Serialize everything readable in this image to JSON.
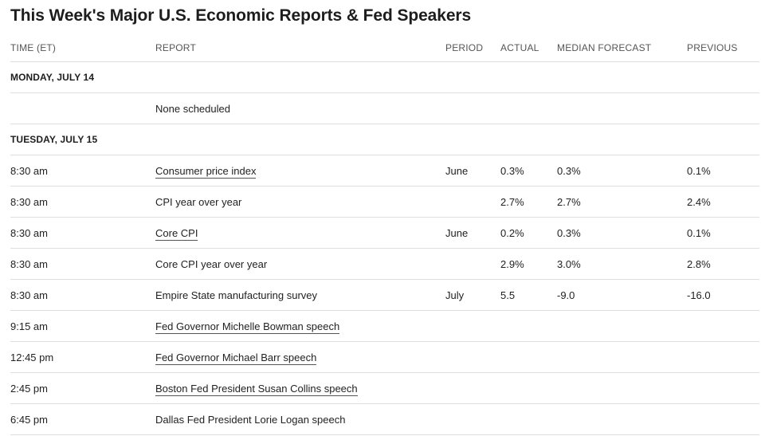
{
  "title": "This Week's Major U.S. Economic Reports & Fed Speakers",
  "columns": {
    "time": "TIME (ET)",
    "report": "REPORT",
    "period": "PERIOD",
    "actual": "ACTUAL",
    "median": "MEDIAN FORECAST",
    "previous": "PREVIOUS"
  },
  "days": [
    {
      "label": "MONDAY, JULY 14",
      "rows": [
        {
          "time": "",
          "report": "None scheduled",
          "link": false,
          "period": "",
          "actual": "",
          "median": "",
          "previous": ""
        }
      ]
    },
    {
      "label": "TUESDAY, JULY 15",
      "rows": [
        {
          "time": "8:30 am",
          "report": "Consumer price index",
          "link": true,
          "period": "June",
          "actual": "0.3%",
          "median": "0.3%",
          "previous": "0.1%"
        },
        {
          "time": "8:30 am",
          "report": "CPI year over year",
          "link": false,
          "period": "",
          "actual": "2.7%",
          "median": "2.7%",
          "previous": "2.4%"
        },
        {
          "time": "8:30 am",
          "report": "Core CPI",
          "link": true,
          "period": "June",
          "actual": "0.2%",
          "median": "0.3%",
          "previous": "0.1%"
        },
        {
          "time": "8:30 am",
          "report": "Core CPI year over year",
          "link": false,
          "period": "",
          "actual": "2.9%",
          "median": "3.0%",
          "previous": "2.8%"
        },
        {
          "time": "8:30 am",
          "report": "Empire State manufacturing survey",
          "link": false,
          "period": "July",
          "actual": "5.5",
          "median": "-9.0",
          "previous": "-16.0"
        },
        {
          "time": "9:15 am",
          "report": "Fed Governor Michelle Bowman speech",
          "link": true,
          "period": "",
          "actual": "",
          "median": "",
          "previous": ""
        },
        {
          "time": "12:45 pm",
          "report": "Fed Governor Michael Barr speech",
          "link": true,
          "period": "",
          "actual": "",
          "median": "",
          "previous": ""
        },
        {
          "time": "2:45 pm",
          "report": "Boston Fed President Susan Collins speech",
          "link": true,
          "period": "",
          "actual": "",
          "median": "",
          "previous": ""
        },
        {
          "time": "6:45 pm",
          "report": "Dallas Fed President Lorie Logan speech",
          "link": false,
          "period": "",
          "actual": "",
          "median": "",
          "previous": ""
        }
      ]
    }
  ]
}
